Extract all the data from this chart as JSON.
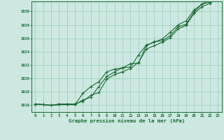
{
  "title": "Graphe pression niveau de la mer (hPa)",
  "background_color": "#cce8e0",
  "plot_bg_color": "#cce8e0",
  "grid_color": "#99ccbb",
  "line_color": "#1a6b35",
  "marker_color": "#1a6b35",
  "xlim": [
    -0.5,
    23.5
  ],
  "ylim": [
    1015.0,
    1031.5
  ],
  "yticks": [
    1016,
    1018,
    1020,
    1022,
    1024,
    1026,
    1028,
    1030
  ],
  "xticks": [
    0,
    1,
    2,
    3,
    4,
    5,
    6,
    7,
    8,
    9,
    10,
    11,
    12,
    13,
    14,
    15,
    16,
    17,
    18,
    19,
    20,
    21,
    22,
    23
  ],
  "hours": [
    0,
    1,
    2,
    3,
    4,
    5,
    6,
    7,
    8,
    9,
    10,
    11,
    12,
    13,
    14,
    15,
    16,
    17,
    18,
    19,
    20,
    21,
    22,
    23
  ],
  "line1": [
    1016.2,
    1016.1,
    1016.0,
    1016.1,
    1016.1,
    1016.1,
    1016.8,
    1017.2,
    1018.8,
    1020.3,
    1021.0,
    1021.6,
    1022.2,
    1022.3,
    1024.9,
    1025.5,
    1025.6,
    1026.4,
    1027.7,
    1028.1,
    1029.9,
    1031.1,
    1031.4,
    1032.4
  ],
  "line2": [
    1016.2,
    1016.1,
    1016.0,
    1016.1,
    1016.1,
    1016.1,
    1017.8,
    1018.8,
    1019.5,
    1021.0,
    1021.4,
    1021.6,
    1021.7,
    1023.5,
    1025.0,
    1025.4,
    1025.9,
    1026.9,
    1028.0,
    1028.6,
    1030.2,
    1031.1,
    1031.7,
    1032.7
  ],
  "line3": [
    1016.2,
    1016.1,
    1016.0,
    1016.2,
    1016.2,
    1016.2,
    1016.6,
    1017.5,
    1017.9,
    1019.9,
    1020.6,
    1021.0,
    1021.5,
    1022.4,
    1024.4,
    1024.9,
    1025.4,
    1026.1,
    1027.4,
    1027.9,
    1029.7,
    1030.7,
    1031.2,
    1032.2
  ]
}
